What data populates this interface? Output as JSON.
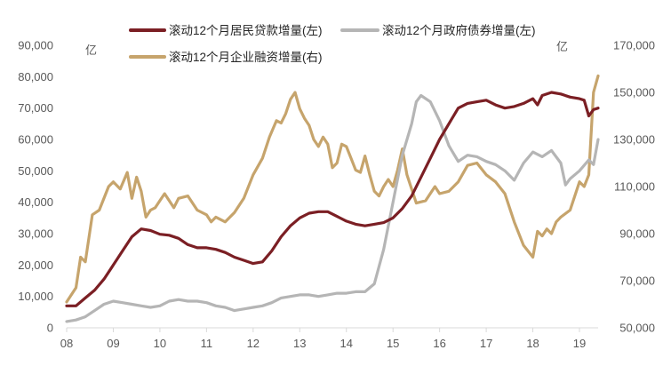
{
  "chart_data": {
    "type": "line",
    "x_labels": [
      "08",
      "09",
      "10",
      "11",
      "12",
      "13",
      "14",
      "15",
      "16",
      "17",
      "18",
      "19"
    ],
    "x_range": [
      2008.0,
      2019.4
    ],
    "left_axis": {
      "unit": "亿",
      "ylim": [
        0,
        90000
      ],
      "ticks": [
        "0",
        "10,000",
        "20,000",
        "30,000",
        "40,000",
        "50,000",
        "60,000",
        "70,000",
        "80,000",
        "90,000"
      ]
    },
    "right_axis": {
      "unit": "亿",
      "ylim": [
        50000,
        170000
      ],
      "ticks": [
        "50,000",
        "70,000",
        "90,000",
        "110,000",
        "130,000",
        "150,000",
        "170,000"
      ]
    },
    "legend_position": "top",
    "series": [
      {
        "name": "滚动12个月居民贷款增量(左)",
        "axis": "left",
        "color": "#7b1f24",
        "points": [
          [
            2008.0,
            7000
          ],
          [
            2008.2,
            7000
          ],
          [
            2008.4,
            9500
          ],
          [
            2008.6,
            12000
          ],
          [
            2008.8,
            15500
          ],
          [
            2009.0,
            20000
          ],
          [
            2009.2,
            24500
          ],
          [
            2009.4,
            29000
          ],
          [
            2009.6,
            31500
          ],
          [
            2009.8,
            31000
          ],
          [
            2010.0,
            29800
          ],
          [
            2010.2,
            29500
          ],
          [
            2010.4,
            28500
          ],
          [
            2010.6,
            26500
          ],
          [
            2010.8,
            25500
          ],
          [
            2011.0,
            25500
          ],
          [
            2011.2,
            25000
          ],
          [
            2011.4,
            24000
          ],
          [
            2011.6,
            22500
          ],
          [
            2011.8,
            21500
          ],
          [
            2012.0,
            20500
          ],
          [
            2012.2,
            21000
          ],
          [
            2012.4,
            24500
          ],
          [
            2012.6,
            29000
          ],
          [
            2012.8,
            32500
          ],
          [
            2013.0,
            35000
          ],
          [
            2013.2,
            36500
          ],
          [
            2013.4,
            37000
          ],
          [
            2013.6,
            37000
          ],
          [
            2013.8,
            35500
          ],
          [
            2014.0,
            34000
          ],
          [
            2014.2,
            33000
          ],
          [
            2014.4,
            32500
          ],
          [
            2014.6,
            33000
          ],
          [
            2014.8,
            33500
          ],
          [
            2015.0,
            35000
          ],
          [
            2015.2,
            38000
          ],
          [
            2015.4,
            42000
          ],
          [
            2015.6,
            48000
          ],
          [
            2015.8,
            54000
          ],
          [
            2016.0,
            60000
          ],
          [
            2016.2,
            65000
          ],
          [
            2016.4,
            70000
          ],
          [
            2016.6,
            71500
          ],
          [
            2016.8,
            72000
          ],
          [
            2017.0,
            72500
          ],
          [
            2017.2,
            71000
          ],
          [
            2017.4,
            70000
          ],
          [
            2017.6,
            70500
          ],
          [
            2017.8,
            71500
          ],
          [
            2018.0,
            73000
          ],
          [
            2018.1,
            71000
          ],
          [
            2018.2,
            74000
          ],
          [
            2018.4,
            75000
          ],
          [
            2018.6,
            74500
          ],
          [
            2018.8,
            73500
          ],
          [
            2019.0,
            73000
          ],
          [
            2019.1,
            72500
          ],
          [
            2019.2,
            67500
          ],
          [
            2019.3,
            69500
          ],
          [
            2019.4,
            70000
          ]
        ]
      },
      {
        "name": "滚动12个月政府债券增量(左)",
        "axis": "left",
        "color": "#b5b5b5",
        "points": [
          [
            2008.0,
            2000
          ],
          [
            2008.2,
            2500
          ],
          [
            2008.4,
            3500
          ],
          [
            2008.6,
            5500
          ],
          [
            2008.8,
            7500
          ],
          [
            2009.0,
            8500
          ],
          [
            2009.2,
            8000
          ],
          [
            2009.4,
            7500
          ],
          [
            2009.6,
            7000
          ],
          [
            2009.8,
            6500
          ],
          [
            2010.0,
            7000
          ],
          [
            2010.2,
            8500
          ],
          [
            2010.4,
            9000
          ],
          [
            2010.6,
            8500
          ],
          [
            2010.8,
            8500
          ],
          [
            2011.0,
            8000
          ],
          [
            2011.2,
            7000
          ],
          [
            2011.4,
            6500
          ],
          [
            2011.6,
            5500
          ],
          [
            2011.8,
            6000
          ],
          [
            2012.0,
            6500
          ],
          [
            2012.2,
            7000
          ],
          [
            2012.4,
            8000
          ],
          [
            2012.6,
            9500
          ],
          [
            2012.8,
            10000
          ],
          [
            2013.0,
            10500
          ],
          [
            2013.2,
            10500
          ],
          [
            2013.4,
            10000
          ],
          [
            2013.6,
            10500
          ],
          [
            2013.8,
            11000
          ],
          [
            2014.0,
            11000
          ],
          [
            2014.2,
            11500
          ],
          [
            2014.4,
            11500
          ],
          [
            2014.6,
            14000
          ],
          [
            2014.8,
            25000
          ],
          [
            2015.0,
            40000
          ],
          [
            2015.2,
            55000
          ],
          [
            2015.4,
            65000
          ],
          [
            2015.5,
            72000
          ],
          [
            2015.6,
            74000
          ],
          [
            2015.8,
            72000
          ],
          [
            2016.0,
            66000
          ],
          [
            2016.2,
            58000
          ],
          [
            2016.4,
            53000
          ],
          [
            2016.6,
            55000
          ],
          [
            2016.8,
            54500
          ],
          [
            2017.0,
            53000
          ],
          [
            2017.2,
            52000
          ],
          [
            2017.4,
            50000
          ],
          [
            2017.6,
            47000
          ],
          [
            2017.8,
            52500
          ],
          [
            2018.0,
            56000
          ],
          [
            2018.2,
            54500
          ],
          [
            2018.4,
            56500
          ],
          [
            2018.6,
            52500
          ],
          [
            2018.7,
            45500
          ],
          [
            2018.8,
            47500
          ],
          [
            2019.0,
            50000
          ],
          [
            2019.2,
            53500
          ],
          [
            2019.3,
            52000
          ],
          [
            2019.4,
            60000
          ]
        ]
      },
      {
        "name": "滚动12个月企业融资增量(右)",
        "axis": "right",
        "color": "#c6a46c",
        "points": [
          [
            2008.0,
            61000
          ],
          [
            2008.2,
            67000
          ],
          [
            2008.3,
            80000
          ],
          [
            2008.4,
            78000
          ],
          [
            2008.55,
            98000
          ],
          [
            2008.7,
            100000
          ],
          [
            2008.9,
            110000
          ],
          [
            2009.0,
            112000
          ],
          [
            2009.15,
            109000
          ],
          [
            2009.3,
            116000
          ],
          [
            2009.4,
            105000
          ],
          [
            2009.5,
            114000
          ],
          [
            2009.6,
            108000
          ],
          [
            2009.7,
            97000
          ],
          [
            2009.8,
            100000
          ],
          [
            2009.9,
            101000
          ],
          [
            2010.0,
            104000
          ],
          [
            2010.1,
            107000
          ],
          [
            2010.2,
            104000
          ],
          [
            2010.3,
            101000
          ],
          [
            2010.4,
            105000
          ],
          [
            2010.6,
            106000
          ],
          [
            2010.8,
            100000
          ],
          [
            2011.0,
            98000
          ],
          [
            2011.1,
            95000
          ],
          [
            2011.2,
            97000
          ],
          [
            2011.4,
            95000
          ],
          [
            2011.6,
            99000
          ],
          [
            2011.8,
            105000
          ],
          [
            2012.0,
            115000
          ],
          [
            2012.2,
            122000
          ],
          [
            2012.35,
            131000
          ],
          [
            2012.5,
            138000
          ],
          [
            2012.6,
            137000
          ],
          [
            2012.7,
            141000
          ],
          [
            2012.8,
            147000
          ],
          [
            2012.9,
            150000
          ],
          [
            2013.0,
            143000
          ],
          [
            2013.1,
            139000
          ],
          [
            2013.2,
            136000
          ],
          [
            2013.3,
            130000
          ],
          [
            2013.4,
            127000
          ],
          [
            2013.5,
            131000
          ],
          [
            2013.6,
            128000
          ],
          [
            2013.7,
            118000
          ],
          [
            2013.8,
            120000
          ],
          [
            2013.9,
            128000
          ],
          [
            2014.0,
            127000
          ],
          [
            2014.1,
            122000
          ],
          [
            2014.2,
            117000
          ],
          [
            2014.3,
            116000
          ],
          [
            2014.4,
            123000
          ],
          [
            2014.5,
            115000
          ],
          [
            2014.6,
            108000
          ],
          [
            2014.7,
            106000
          ],
          [
            2014.8,
            110000
          ],
          [
            2014.9,
            113000
          ],
          [
            2015.0,
            110000
          ],
          [
            2015.1,
            117000
          ],
          [
            2015.2,
            126000
          ],
          [
            2015.3,
            115000
          ],
          [
            2015.5,
            103000
          ],
          [
            2015.7,
            104000
          ],
          [
            2015.9,
            110000
          ],
          [
            2016.0,
            107000
          ],
          [
            2016.2,
            108000
          ],
          [
            2016.4,
            112000
          ],
          [
            2016.6,
            119000
          ],
          [
            2016.8,
            120000
          ],
          [
            2017.0,
            115000
          ],
          [
            2017.2,
            112000
          ],
          [
            2017.4,
            107000
          ],
          [
            2017.6,
            95000
          ],
          [
            2017.8,
            85000
          ],
          [
            2018.0,
            80000
          ],
          [
            2018.1,
            91000
          ],
          [
            2018.2,
            89000
          ],
          [
            2018.3,
            92000
          ],
          [
            2018.4,
            90000
          ],
          [
            2018.5,
            95000
          ],
          [
            2018.6,
            97000
          ],
          [
            2018.8,
            100000
          ],
          [
            2019.0,
            112000
          ],
          [
            2019.1,
            110000
          ],
          [
            2019.2,
            115000
          ],
          [
            2019.3,
            150000
          ],
          [
            2019.4,
            157000
          ]
        ]
      }
    ]
  }
}
